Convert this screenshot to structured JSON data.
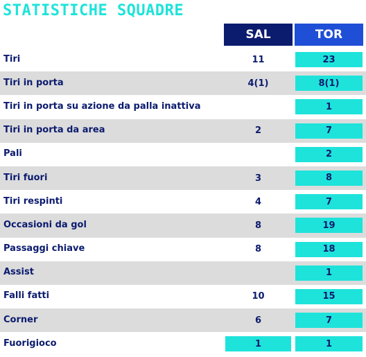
{
  "title": "STATISTICHE SQUADRE",
  "teams": {
    "home": "SAL",
    "away": "TOR"
  },
  "colors": {
    "title": "#1ee3da",
    "home_header": "#0b1b6e",
    "away_header": "#1f4fd6",
    "highlight": "#1ee3da",
    "text": "#0b1b6e",
    "alt_row": "#dcdcdc"
  },
  "rows": [
    {
      "label": "Tiri",
      "sal": "11",
      "tor": "23"
    },
    {
      "label": "Tiri in porta",
      "sal": "4(1)",
      "tor": "8(1)"
    },
    {
      "label": "Tiri in porta su azione da palla inattiva",
      "sal": "",
      "tor": "1"
    },
    {
      "label": "Tiri in porta da area",
      "sal": "2",
      "tor": "7"
    },
    {
      "label": "Pali",
      "sal": "",
      "tor": "2"
    },
    {
      "label": "Tiri fuori",
      "sal": "3",
      "tor": "8"
    },
    {
      "label": "Tiri respinti",
      "sal": "4",
      "tor": "7"
    },
    {
      "label": "Occasioni da gol",
      "sal": "8",
      "tor": "19"
    },
    {
      "label": "Passaggi chiave",
      "sal": "8",
      "tor": "18"
    },
    {
      "label": "Assist",
      "sal": "",
      "tor": "1"
    },
    {
      "label": "Falli fatti",
      "sal": "10",
      "tor": "15"
    },
    {
      "label": "Corner",
      "sal": "6",
      "tor": "7"
    },
    {
      "label": "Fuorigioco",
      "sal": "1",
      "tor": "1"
    }
  ]
}
